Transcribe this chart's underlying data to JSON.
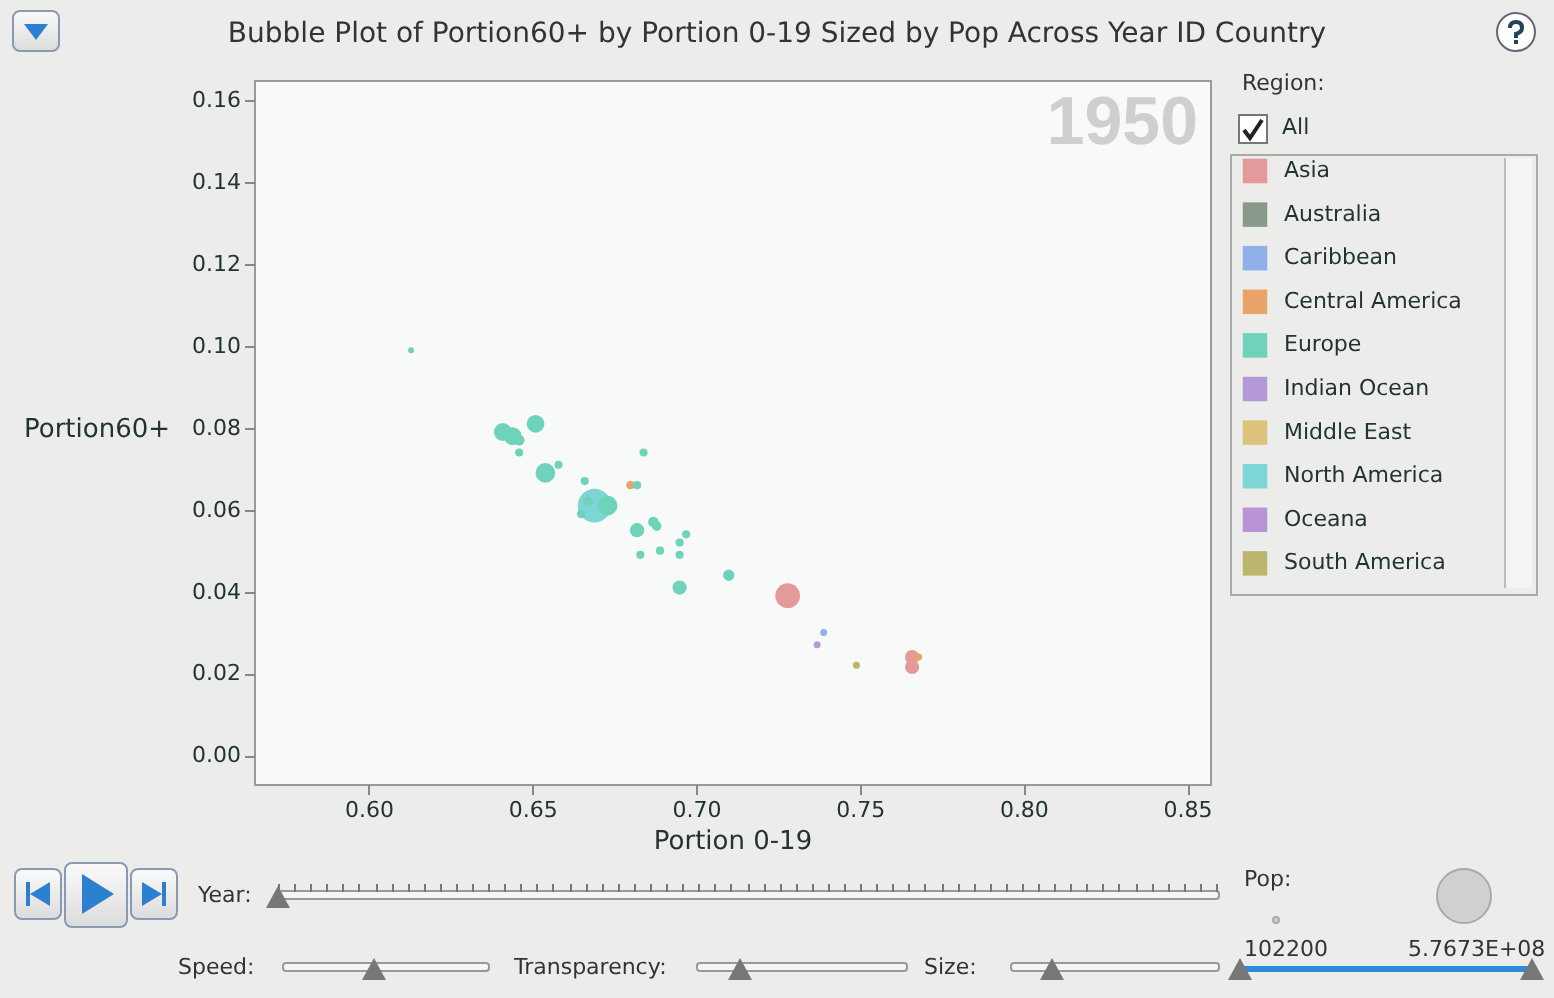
{
  "chart_data": {
    "type": "bubble",
    "title": "Bubble Plot of Portion60+ by Portion 0-19 Sized by Pop Across Year ID Country",
    "xlabel": "Portion 0-19",
    "ylabel": "Portion60+",
    "legend_title": "Region:",
    "annotations": [
      "1950",
      "All",
      "Year:",
      "Speed:",
      "Transparency:",
      "Size:",
      "Pop:",
      "102200",
      "5.7673E+08"
    ],
    "xlim": [
      0.565,
      0.857
    ],
    "ylim": [
      -0.007,
      0.165
    ],
    "xticks": [
      {
        "value": 0.6,
        "label": "0.60"
      },
      {
        "value": 0.65,
        "label": "0.65"
      },
      {
        "value": 0.7,
        "label": "0.70"
      },
      {
        "value": 0.75,
        "label": "0.75"
      },
      {
        "value": 0.8,
        "label": "0.80"
      },
      {
        "value": 0.85,
        "label": "0.85"
      }
    ],
    "yticks": [
      {
        "value": 0,
        "label": "0.00"
      },
      {
        "value": 0.02,
        "label": "0.02"
      },
      {
        "value": 0.04,
        "label": "0.04"
      },
      {
        "value": 0.06,
        "label": "0.06"
      },
      {
        "value": 0.08,
        "label": "0.08"
      },
      {
        "value": 0.1,
        "label": "0.10"
      },
      {
        "value": 0.12,
        "label": "0.12"
      },
      {
        "value": 0.14,
        "label": "0.14"
      },
      {
        "value": 0.16,
        "label": "0.16"
      }
    ],
    "grid": false,
    "legend": "right",
    "series": [
      {
        "name": "Asia",
        "color": "#e49a9a",
        "x": [
          0.728,
          0.766,
          0.766
        ],
        "values": [
          0.039,
          0.024,
          0.0216
        ],
        "sizes": [
          0.54,
          0.18,
          0.18
        ]
      },
      {
        "name": "Australia",
        "color": "#8a9a8a"
      },
      {
        "name": "Caribbean",
        "color": "#8fb0e8",
        "x": [
          0.739
        ],
        "values": [
          0.03
        ],
        "sizes": [
          0.044
        ]
      },
      {
        "name": "Central America",
        "color": "#e8a468",
        "x": [
          0.68,
          0.768
        ],
        "values": [
          0.066,
          0.024
        ],
        "sizes": [
          0.059,
          0.044
        ]
      },
      {
        "name": "Europe",
        "color": "#6fd3bb",
        "x": [
          0.613,
          0.641,
          0.644,
          0.646,
          0.651,
          0.646,
          0.654,
          0.658,
          0.666,
          0.673,
          0.667,
          0.665,
          0.684,
          0.682,
          0.682,
          0.687,
          0.688,
          0.697,
          0.695,
          0.695,
          0.689,
          0.683,
          0.71,
          0.695
        ],
        "values": [
          0.099,
          0.079,
          0.078,
          0.077,
          0.081,
          0.074,
          0.069,
          0.071,
          0.067,
          0.061,
          0.062,
          0.059,
          0.074,
          0.066,
          0.055,
          0.057,
          0.056,
          0.054,
          0.052,
          0.049,
          0.05,
          0.049,
          0.044,
          0.041
        ],
        "sizes": [
          0.032,
          0.28,
          0.28,
          0.1,
          0.28,
          0.059,
          0.34,
          0.059,
          0.059,
          0.34,
          0.081,
          0.069,
          0.059,
          0.059,
          0.18,
          0.1,
          0.081,
          0.059,
          0.059,
          0.059,
          0.059,
          0.059,
          0.113,
          0.18
        ]
      },
      {
        "name": "Indian Ocean",
        "color": "#b39ad6",
        "x": [
          0.737
        ],
        "values": [
          0.027
        ],
        "sizes": [
          0.044
        ]
      },
      {
        "name": "Middle East",
        "color": "#dcc27a"
      },
      {
        "name": "North America",
        "color": "#7dd5d5",
        "x": [
          0.669
        ],
        "values": [
          0.061
        ],
        "sizes": [
          1
        ]
      },
      {
        "name": "Oceana",
        "color": "#b894d4"
      },
      {
        "name": "South America",
        "color": "#bcb56e",
        "x": [
          0.749
        ],
        "values": [
          0.022
        ],
        "sizes": [
          0.044
        ]
      }
    ]
  }
}
